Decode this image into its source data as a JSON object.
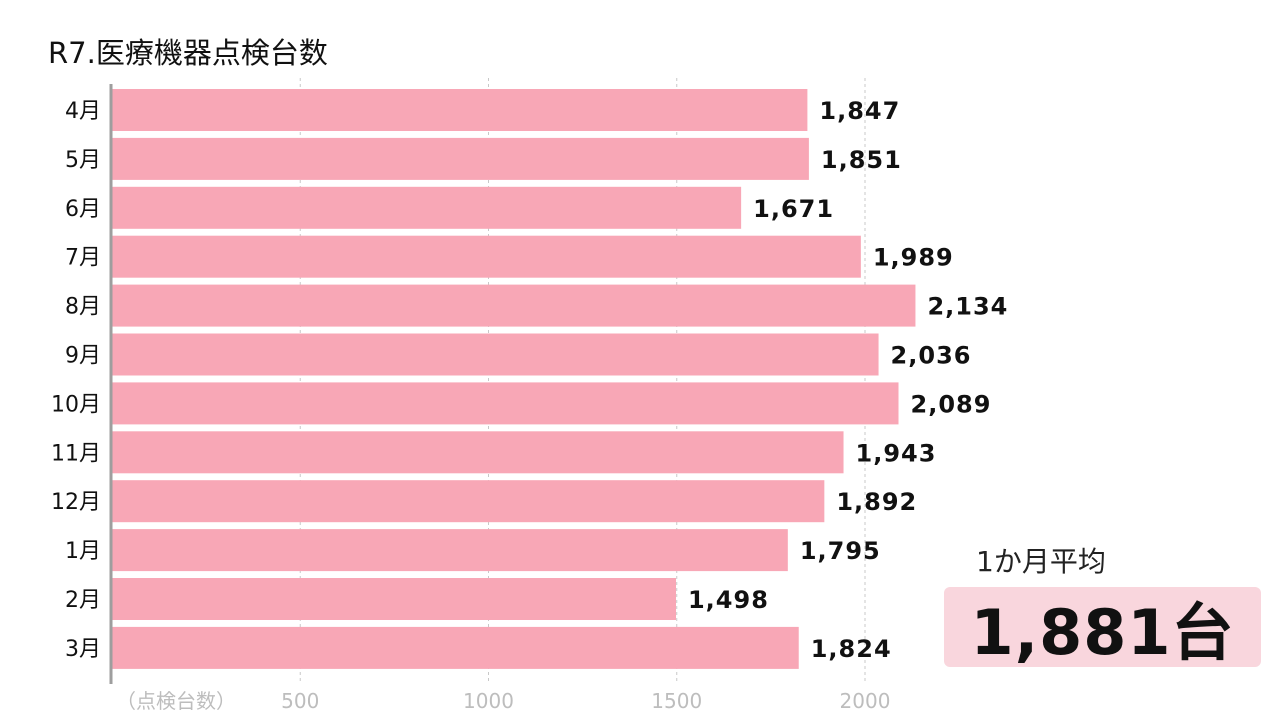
{
  "title": "R7.医療機器点検台数",
  "summary": {
    "label": "1か月平均",
    "value": "1,881台"
  },
  "chart_data": {
    "type": "bar",
    "orientation": "horizontal",
    "title": "R7.医療機器点検台数",
    "xlabel": "（点検台数）",
    "categories": [
      "4月",
      "5月",
      "6月",
      "7月",
      "8月",
      "9月",
      "10月",
      "11月",
      "12月",
      "1月",
      "2月",
      "3月"
    ],
    "values": [
      1847,
      1851,
      1671,
      1989,
      2134,
      2036,
      2089,
      1943,
      1892,
      1795,
      1498,
      1824
    ],
    "value_labels": [
      "1,847",
      "1,851",
      "1,671",
      "1,989",
      "2,134",
      "2,036",
      "2,089",
      "1,943",
      "1,892",
      "1,795",
      "1,498",
      "1,824"
    ],
    "xticks": [
      500,
      1000,
      1500,
      2000
    ],
    "xlim": [
      0,
      2200
    ],
    "grid": "vertical dashed",
    "bar_color": "#f8a7b6"
  }
}
